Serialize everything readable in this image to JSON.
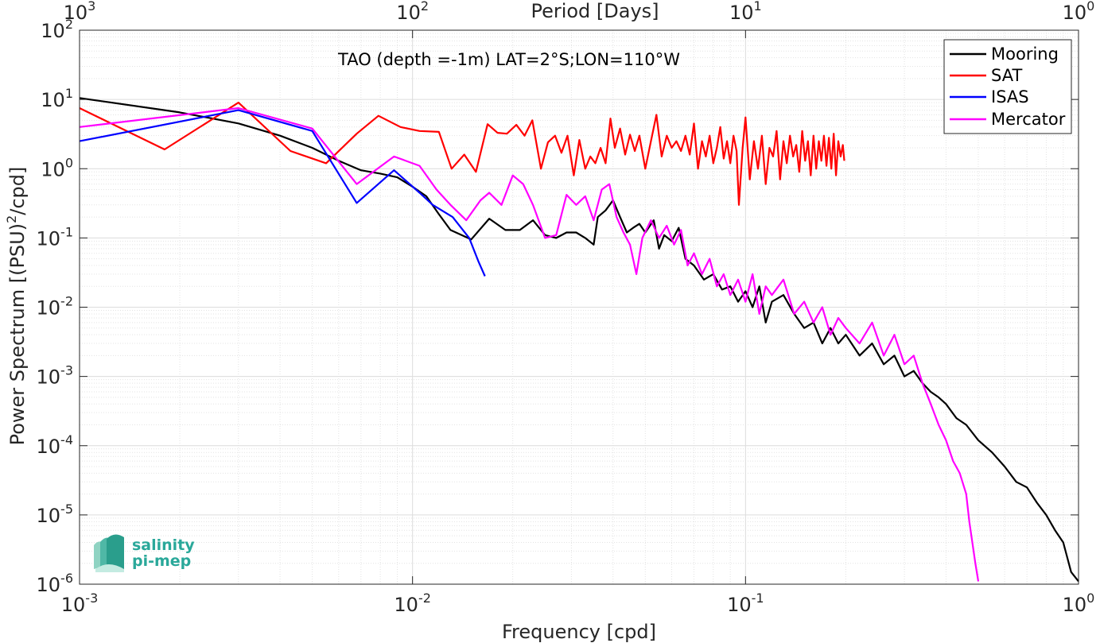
{
  "chart_data": {
    "type": "line",
    "title": "TAO (depth =-1m) LAT=2°S;LON=110°W",
    "xlabel": "Frequency [cpd]",
    "ylabel": "Power Spectrum [(PSU)",
    "ylabel_sup": "2",
    "ylabel_tail": "/cpd]",
    "top_xlabel": "Period [Days]",
    "x_scale": "log",
    "y_scale": "log",
    "xlim": [
      0.001,
      1
    ],
    "ylim": [
      1e-06,
      100
    ],
    "grid": true,
    "legend_position": "top-right",
    "x_ticks": [
      0.001,
      0.01,
      0.1,
      1
    ],
    "x_tick_labels": [
      {
        "base": "10",
        "exp": "-3"
      },
      {
        "base": "10",
        "exp": "-2"
      },
      {
        "base": "10",
        "exp": "-1"
      },
      {
        "base": "10",
        "exp": "0"
      }
    ],
    "top_ticks": [
      1000,
      100,
      10,
      1
    ],
    "top_tick_labels": [
      {
        "base": "10",
        "exp": "3"
      },
      {
        "base": "10",
        "exp": "2"
      },
      {
        "base": "10",
        "exp": "1"
      },
      {
        "base": "10",
        "exp": "0"
      }
    ],
    "y_ticks": [
      1e-06,
      1e-05,
      0.0001,
      0.001,
      0.01,
      0.1,
      1,
      10,
      100
    ],
    "y_tick_labels": [
      {
        "base": "10",
        "exp": "-6"
      },
      {
        "base": "10",
        "exp": "-5"
      },
      {
        "base": "10",
        "exp": "-4"
      },
      {
        "base": "10",
        "exp": "-3"
      },
      {
        "base": "10",
        "exp": "-2"
      },
      {
        "base": "10",
        "exp": "-1"
      },
      {
        "base": "10",
        "exp": "0"
      },
      {
        "base": "10",
        "exp": "1"
      },
      {
        "base": "10",
        "exp": "2"
      }
    ],
    "series": [
      {
        "name": "Mooring",
        "color": "#000000",
        "points": [
          [
            0.001,
            10.5
          ],
          [
            0.002,
            6.5
          ],
          [
            0.003,
            4.5
          ],
          [
            0.004,
            3.0
          ],
          [
            0.005,
            2.0
          ],
          [
            0.006,
            1.3
          ],
          [
            0.007,
            0.95
          ],
          [
            0.008,
            0.85
          ],
          [
            0.009,
            0.75
          ],
          [
            0.01,
            0.55
          ],
          [
            0.011,
            0.4
          ],
          [
            0.012,
            0.22
          ],
          [
            0.013,
            0.13
          ],
          [
            0.015,
            0.095
          ],
          [
            0.017,
            0.19
          ],
          [
            0.019,
            0.13
          ],
          [
            0.021,
            0.13
          ],
          [
            0.023,
            0.18
          ],
          [
            0.025,
            0.11
          ],
          [
            0.027,
            0.1
          ],
          [
            0.029,
            0.12
          ],
          [
            0.031,
            0.12
          ],
          [
            0.033,
            0.1
          ],
          [
            0.035,
            0.08
          ],
          [
            0.036,
            0.2
          ],
          [
            0.038,
            0.25
          ],
          [
            0.04,
            0.35
          ],
          [
            0.042,
            0.2
          ],
          [
            0.044,
            0.12
          ],
          [
            0.046,
            0.14
          ],
          [
            0.048,
            0.16
          ],
          [
            0.05,
            0.12
          ],
          [
            0.053,
            0.18
          ],
          [
            0.055,
            0.07
          ],
          [
            0.057,
            0.11
          ],
          [
            0.06,
            0.09
          ],
          [
            0.063,
            0.14
          ],
          [
            0.066,
            0.05
          ],
          [
            0.07,
            0.04
          ],
          [
            0.075,
            0.025
          ],
          [
            0.08,
            0.03
          ],
          [
            0.085,
            0.018
          ],
          [
            0.09,
            0.02
          ],
          [
            0.095,
            0.012
          ],
          [
            0.1,
            0.017
          ],
          [
            0.105,
            0.01
          ],
          [
            0.11,
            0.02
          ],
          [
            0.115,
            0.006
          ],
          [
            0.12,
            0.012
          ],
          [
            0.13,
            0.015
          ],
          [
            0.14,
            0.008
          ],
          [
            0.15,
            0.005
          ],
          [
            0.16,
            0.006
          ],
          [
            0.17,
            0.003
          ],
          [
            0.18,
            0.005
          ],
          [
            0.19,
            0.003
          ],
          [
            0.2,
            0.004
          ],
          [
            0.22,
            0.002
          ],
          [
            0.24,
            0.003
          ],
          [
            0.26,
            0.0015
          ],
          [
            0.28,
            0.002
          ],
          [
            0.3,
            0.001
          ],
          [
            0.32,
            0.0012
          ],
          [
            0.34,
            0.0008
          ],
          [
            0.36,
            0.0006
          ],
          [
            0.38,
            0.0005
          ],
          [
            0.4,
            0.0004
          ],
          [
            0.43,
            0.00025
          ],
          [
            0.46,
            0.0002
          ],
          [
            0.5,
            0.00012
          ],
          [
            0.55,
            8e-05
          ],
          [
            0.6,
            5e-05
          ],
          [
            0.65,
            3e-05
          ],
          [
            0.7,
            2.5e-05
          ],
          [
            0.75,
            1.5e-05
          ],
          [
            0.8,
            1e-05
          ],
          [
            0.85,
            6e-06
          ],
          [
            0.9,
            4e-06
          ],
          [
            0.95,
            1.5e-06
          ],
          [
            1.0,
            1.1e-06
          ]
        ]
      },
      {
        "name": "SAT",
        "color": "#ff0000",
        "points": [
          [
            0.001,
            7.5
          ],
          [
            0.0018,
            1.9
          ],
          [
            0.003,
            9.0
          ],
          [
            0.0043,
            1.8
          ],
          [
            0.0055,
            1.2
          ],
          [
            0.0068,
            3.2
          ],
          [
            0.0079,
            5.8
          ],
          [
            0.0092,
            4.0
          ],
          [
            0.0105,
            3.5
          ],
          [
            0.012,
            3.4
          ],
          [
            0.0131,
            1.0
          ],
          [
            0.0143,
            1.6
          ],
          [
            0.0155,
            0.9
          ],
          [
            0.0168,
            4.4
          ],
          [
            0.018,
            3.3
          ],
          [
            0.0192,
            3.2
          ],
          [
            0.0205,
            4.3
          ],
          [
            0.0217,
            3.0
          ],
          [
            0.0229,
            5.0
          ],
          [
            0.0243,
            1.0
          ],
          [
            0.0255,
            2.4
          ],
          [
            0.0268,
            3.0
          ],
          [
            0.028,
            1.7
          ],
          [
            0.0292,
            3.0
          ],
          [
            0.0305,
            0.8
          ],
          [
            0.0317,
            2.6
          ],
          [
            0.033,
            1.0
          ],
          [
            0.0342,
            1.5
          ],
          [
            0.0354,
            1.2
          ],
          [
            0.0367,
            2.0
          ],
          [
            0.038,
            1.2
          ],
          [
            0.0393,
            5.3
          ],
          [
            0.0405,
            2.0
          ],
          [
            0.042,
            3.8
          ],
          [
            0.0435,
            1.6
          ],
          [
            0.045,
            3.1
          ],
          [
            0.0465,
            1.8
          ],
          [
            0.048,
            3.0
          ],
          [
            0.05,
            1.0
          ],
          [
            0.052,
            2.5
          ],
          [
            0.054,
            6.0
          ],
          [
            0.056,
            1.5
          ],
          [
            0.058,
            3.0
          ],
          [
            0.06,
            2.0
          ],
          [
            0.062,
            2.5
          ],
          [
            0.064,
            1.8
          ],
          [
            0.066,
            3.0
          ],
          [
            0.068,
            1.6
          ],
          [
            0.07,
            4.5
          ],
          [
            0.072,
            1.0
          ],
          [
            0.074,
            2.5
          ],
          [
            0.076,
            1.5
          ],
          [
            0.078,
            3.0
          ],
          [
            0.08,
            1.2
          ],
          [
            0.082,
            2.0
          ],
          [
            0.084,
            4.0
          ],
          [
            0.086,
            1.4
          ],
          [
            0.088,
            2.5
          ],
          [
            0.09,
            1.2
          ],
          [
            0.092,
            3.0
          ],
          [
            0.094,
            1.8
          ],
          [
            0.0955,
            0.3
          ],
          [
            0.098,
            2.0
          ],
          [
            0.1,
            5.5
          ],
          [
            0.103,
            0.7
          ],
          [
            0.106,
            2.5
          ],
          [
            0.109,
            1.0
          ],
          [
            0.112,
            3.0
          ],
          [
            0.115,
            0.6
          ],
          [
            0.118,
            2.0
          ],
          [
            0.121,
            1.5
          ],
          [
            0.124,
            3.5
          ],
          [
            0.127,
            0.7
          ],
          [
            0.13,
            2.5
          ],
          [
            0.133,
            1.2
          ],
          [
            0.136,
            3.0
          ],
          [
            0.139,
            1.5
          ],
          [
            0.142,
            2.2
          ],
          [
            0.145,
            0.9
          ],
          [
            0.148,
            3.5
          ],
          [
            0.151,
            1.3
          ],
          [
            0.154,
            2.5
          ],
          [
            0.157,
            0.8
          ],
          [
            0.16,
            3.0
          ],
          [
            0.163,
            1.0
          ],
          [
            0.166,
            2.5
          ],
          [
            0.169,
            1.3
          ],
          [
            0.172,
            3.0
          ],
          [
            0.175,
            1.1
          ],
          [
            0.178,
            2.8
          ],
          [
            0.181,
            1.0
          ],
          [
            0.184,
            3.2
          ],
          [
            0.187,
            0.8
          ],
          [
            0.19,
            2.5
          ],
          [
            0.193,
            1.5
          ],
          [
            0.196,
            2.2
          ],
          [
            0.198,
            1.3
          ]
        ]
      },
      {
        "name": "ISAS",
        "color": "#0000ff",
        "points": [
          [
            0.001,
            2.5
          ],
          [
            0.003,
            7.0
          ],
          [
            0.005,
            3.5
          ],
          [
            0.0068,
            0.32
          ],
          [
            0.0088,
            0.95
          ],
          [
            0.0105,
            0.45
          ],
          [
            0.0115,
            0.3
          ],
          [
            0.0132,
            0.2
          ],
          [
            0.0148,
            0.1
          ],
          [
            0.0158,
            0.045
          ],
          [
            0.0165,
            0.028
          ]
        ]
      },
      {
        "name": "Mercator",
        "color": "#ff00ff",
        "points": [
          [
            0.001,
            4.0
          ],
          [
            0.003,
            7.5
          ],
          [
            0.005,
            3.8
          ],
          [
            0.0068,
            0.6
          ],
          [
            0.0088,
            1.5
          ],
          [
            0.0105,
            1.1
          ],
          [
            0.0118,
            0.5
          ],
          [
            0.013,
            0.3
          ],
          [
            0.0145,
            0.18
          ],
          [
            0.016,
            0.35
          ],
          [
            0.017,
            0.45
          ],
          [
            0.0185,
            0.3
          ],
          [
            0.02,
            0.8
          ],
          [
            0.0215,
            0.6
          ],
          [
            0.023,
            0.3
          ],
          [
            0.025,
            0.1
          ],
          [
            0.027,
            0.11
          ],
          [
            0.029,
            0.42
          ],
          [
            0.031,
            0.3
          ],
          [
            0.033,
            0.4
          ],
          [
            0.035,
            0.18
          ],
          [
            0.037,
            0.5
          ],
          [
            0.039,
            0.6
          ],
          [
            0.041,
            0.2
          ],
          [
            0.043,
            0.12
          ],
          [
            0.045,
            0.08
          ],
          [
            0.047,
            0.03
          ],
          [
            0.049,
            0.1
          ],
          [
            0.052,
            0.18
          ],
          [
            0.055,
            0.1
          ],
          [
            0.058,
            0.15
          ],
          [
            0.061,
            0.08
          ],
          [
            0.064,
            0.13
          ],
          [
            0.067,
            0.04
          ],
          [
            0.07,
            0.06
          ],
          [
            0.074,
            0.03
          ],
          [
            0.078,
            0.05
          ],
          [
            0.082,
            0.02
          ],
          [
            0.086,
            0.03
          ],
          [
            0.09,
            0.015
          ],
          [
            0.095,
            0.025
          ],
          [
            0.1,
            0.012
          ],
          [
            0.105,
            0.03
          ],
          [
            0.11,
            0.008
          ],
          [
            0.115,
            0.02
          ],
          [
            0.12,
            0.015
          ],
          [
            0.13,
            0.025
          ],
          [
            0.14,
            0.008
          ],
          [
            0.15,
            0.012
          ],
          [
            0.16,
            0.006
          ],
          [
            0.17,
            0.01
          ],
          [
            0.18,
            0.004
          ],
          [
            0.19,
            0.007
          ],
          [
            0.2,
            0.005
          ],
          [
            0.22,
            0.003
          ],
          [
            0.24,
            0.006
          ],
          [
            0.26,
            0.002
          ],
          [
            0.28,
            0.004
          ],
          [
            0.3,
            0.0015
          ],
          [
            0.32,
            0.002
          ],
          [
            0.34,
            0.0008
          ],
          [
            0.36,
            0.0004
          ],
          [
            0.38,
            0.0002
          ],
          [
            0.4,
            0.00012
          ],
          [
            0.42,
            6e-05
          ],
          [
            0.44,
            4e-05
          ],
          [
            0.46,
            2e-05
          ],
          [
            0.47,
            8e-06
          ],
          [
            0.48,
            4e-06
          ],
          [
            0.49,
            2e-06
          ],
          [
            0.5,
            1.1e-06
          ]
        ]
      }
    ]
  },
  "logo": {
    "line1": "salinity",
    "line2": "pi-mep",
    "color": "#2aa89a"
  }
}
